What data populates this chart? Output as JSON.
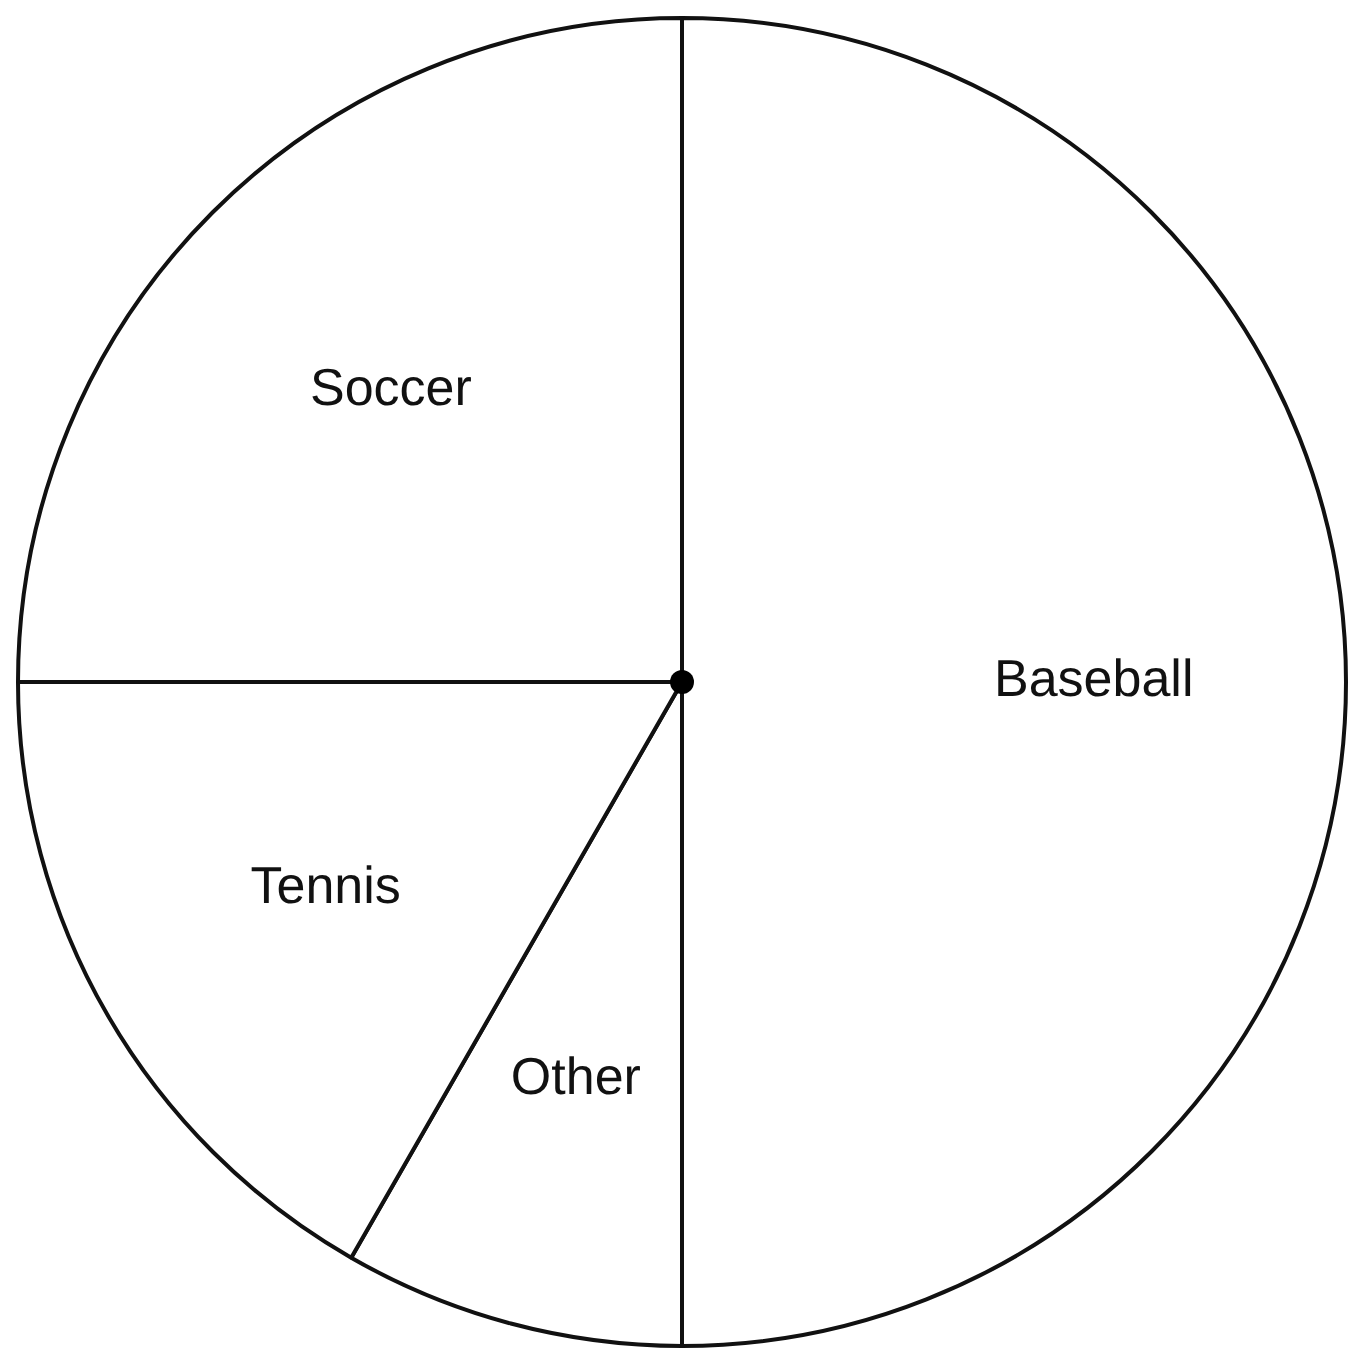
{
  "chart_data": {
    "type": "pie",
    "categories": [
      "Baseball",
      "Other",
      "Tennis",
      "Soccer"
    ],
    "values": [
      50,
      8.3,
      16.7,
      25
    ],
    "colors": [
      "#ffffff",
      "#ffffff",
      "#ffffff",
      "#ffffff"
    ]
  }
}
